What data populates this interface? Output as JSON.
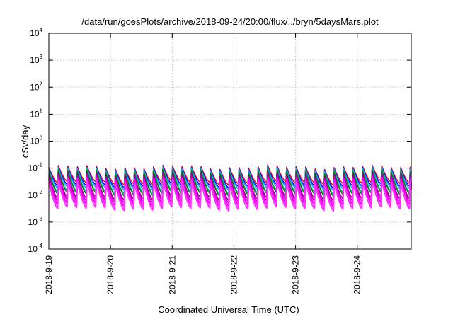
{
  "chart_data": {
    "type": "line",
    "title": "/data/run/goesPlots/archive/2018-09-24/20:00/flux/../bryn/5daysMars.plot",
    "xlabel": "Coordinated Universal Time (UTC)",
    "ylabel": "cSv/day",
    "yscale": "log",
    "ylim": [
      0.0001,
      10000
    ],
    "xlim": [
      "2018-09-19T00:00",
      "2018-09-24T21:00"
    ],
    "grid": true,
    "y_ticks": [
      {
        "base": "10",
        "exp": "-4",
        "value": 0.0001
      },
      {
        "base": "10",
        "exp": "-3",
        "value": 0.001
      },
      {
        "base": "10",
        "exp": "-2",
        "value": 0.01
      },
      {
        "base": "10",
        "exp": "-1",
        "value": 0.1
      },
      {
        "base": "10",
        "exp": "0",
        "value": 1
      },
      {
        "base": "10",
        "exp": "1",
        "value": 10
      },
      {
        "base": "10",
        "exp": "2",
        "value": 100
      },
      {
        "base": "10",
        "exp": "3",
        "value": 1000
      },
      {
        "base": "10",
        "exp": "4",
        "value": 10000
      }
    ],
    "x_ticks": [
      "2018-9-19",
      "2018-9-20",
      "2018-9-21",
      "2018-9-22",
      "2018-9-23",
      "2018-9-24"
    ],
    "x_tick_dates": [
      "2018-09-19T00:00",
      "2018-09-20T00:00",
      "2018-09-21T00:00",
      "2018-09-22T00:00",
      "2018-09-23T00:00",
      "2018-09-24T00:00"
    ],
    "cycle_hours": 3.7,
    "series": [
      {
        "color": "#ff0000",
        "peak": 0.11,
        "trough": 0.028
      },
      {
        "color": "#0000ff",
        "peak": 0.1,
        "trough": 0.022
      },
      {
        "color": "#1e90ff",
        "peak": 0.095,
        "trough": 0.018
      },
      {
        "color": "#00b0b0",
        "peak": 0.085,
        "trough": 0.013
      },
      {
        "color": "#008000",
        "peak": 0.075,
        "trough": 0.011
      },
      {
        "color": "#8b008b",
        "peak": 0.06,
        "trough": 0.0075
      },
      {
        "color": "#b000b0",
        "peak": 0.05,
        "trough": 0.006
      },
      {
        "color": "#ff00ff",
        "peak": 0.04,
        "trough": 0.0045
      },
      {
        "color": "#ff33ff",
        "peak": 0.03,
        "trough": 0.0032
      }
    ]
  }
}
